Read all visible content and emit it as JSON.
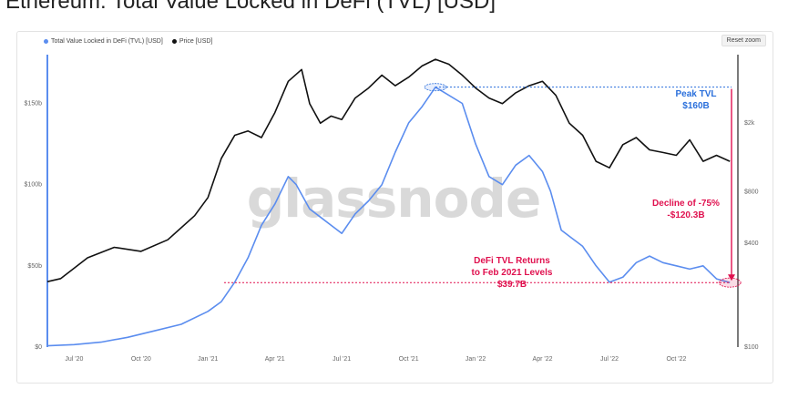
{
  "page": {
    "title": "Ethereum: Total Value Locked in DeFi (TVL) [USD]",
    "reset_zoom": "Reset zoom",
    "watermark": "glassnode"
  },
  "legend": [
    {
      "label": "Total Value Locked in DeFi (TVL) [USD]",
      "color": "#5b8def"
    },
    {
      "label": "Price [USD]",
      "color": "#111111"
    }
  ],
  "annotations": {
    "peak_line1": "Peak TVL",
    "peak_line2": "$160B",
    "decline_line1": "Decline of -75%",
    "decline_line2": "-$120.3B",
    "returns_line1": "DeFi TVL Returns",
    "returns_line2": "to Feb 2021 Levels",
    "returns_line3": "$39.7B"
  },
  "colors": {
    "tvl": "#5b8def",
    "price": "#111111",
    "peak": "#2a6fdb",
    "decline": "#e0114f",
    "returns": "#e0114f"
  },
  "chart_data": {
    "type": "line",
    "x_ticks": [
      "Jul '20",
      "Oct '20",
      "Jan '21",
      "Apr '21",
      "Jul '21",
      "Oct '21",
      "Jan '22",
      "Apr '22",
      "Jul '22",
      "Oct '22"
    ],
    "y_left_ticks": [
      "$0",
      "$50b",
      "$100b",
      "$150b"
    ],
    "y_left_values": [
      0,
      50,
      100,
      150
    ],
    "y_left_range": [
      0,
      180
    ],
    "y_right_ticks": [
      "$100",
      "$400",
      "$800",
      "$2k"
    ],
    "y_right_values": [
      100,
      400,
      800,
      2000
    ],
    "y_right_scale": "log",
    "y_right_range": [
      100,
      5000
    ],
    "x_range": [
      2020.4,
      2022.98
    ],
    "series": [
      {
        "name": "Total Value Locked in DeFi (TVL) [USD]",
        "axis": "left",
        "x": [
          2020.4,
          2020.5,
          2020.6,
          2020.7,
          2020.8,
          2020.9,
          2021.0,
          2021.05,
          2021.1,
          2021.15,
          2021.2,
          2021.25,
          2021.3,
          2021.33,
          2021.38,
          2021.42,
          2021.46,
          2021.5,
          2021.55,
          2021.6,
          2021.65,
          2021.7,
          2021.75,
          2021.8,
          2021.85,
          2021.9,
          2021.95,
          2022.0,
          2022.05,
          2022.1,
          2022.15,
          2022.2,
          2022.25,
          2022.28,
          2022.32,
          2022.36,
          2022.4,
          2022.45,
          2022.5,
          2022.55,
          2022.6,
          2022.65,
          2022.7,
          2022.75,
          2022.8,
          2022.85,
          2022.9,
          2022.95
        ],
        "values": [
          0.8,
          1.5,
          3,
          6,
          10,
          14,
          22,
          28,
          40,
          55,
          75,
          88,
          105,
          100,
          85,
          80,
          75,
          70,
          82,
          90,
          100,
          120,
          138,
          148,
          160,
          155,
          150,
          125,
          105,
          100,
          112,
          118,
          108,
          96,
          72,
          67,
          62,
          50,
          40,
          43,
          52,
          56,
          52,
          50,
          48,
          50,
          42,
          39.7
        ]
      },
      {
        "name": "Price [USD]",
        "axis": "right",
        "x": [
          2020.4,
          2020.45,
          2020.55,
          2020.65,
          2020.75,
          2020.85,
          2020.95,
          2021.0,
          2021.05,
          2021.1,
          2021.15,
          2021.2,
          2021.25,
          2021.3,
          2021.35,
          2021.38,
          2021.42,
          2021.46,
          2021.5,
          2021.55,
          2021.6,
          2021.65,
          2021.7,
          2021.75,
          2021.8,
          2021.85,
          2021.9,
          2021.95,
          2022.0,
          2022.05,
          2022.1,
          2022.15,
          2022.2,
          2022.25,
          2022.3,
          2022.35,
          2022.4,
          2022.45,
          2022.5,
          2022.55,
          2022.6,
          2022.65,
          2022.7,
          2022.75,
          2022.8,
          2022.85,
          2022.9,
          2022.95
        ],
        "values": [
          240,
          250,
          330,
          380,
          360,
          420,
          580,
          740,
          1250,
          1700,
          1800,
          1650,
          2300,
          3500,
          4100,
          2600,
          2000,
          2200,
          2100,
          2800,
          3200,
          3800,
          3300,
          3700,
          4300,
          4700,
          4400,
          3800,
          3200,
          2800,
          2600,
          3000,
          3300,
          3500,
          2900,
          2000,
          1700,
          1200,
          1100,
          1500,
          1650,
          1400,
          1350,
          1300,
          1600,
          1200,
          1300,
          1200
        ]
      }
    ],
    "grid": false,
    "legend_position": "top-left"
  }
}
